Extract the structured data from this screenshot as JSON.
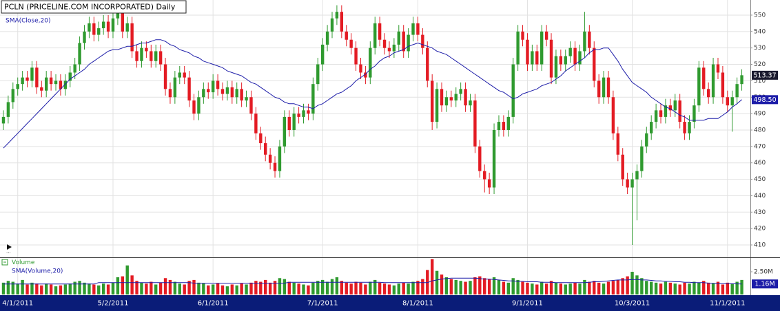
{
  "chart_data": {
    "type": "candlestick",
    "title": "PCLN (PRICELINE.COM INCORPORATED) Daily",
    "up_color": "#2f9a2f",
    "down_color": "#e31b23",
    "grid": true,
    "xlim": [
      -0.72,
      156.8
    ],
    "xticks": [
      {
        "value": 3,
        "label": "4/1/2011"
      },
      {
        "value": 23,
        "label": "5/2/2011"
      },
      {
        "value": 44,
        "label": "6/1/2011"
      },
      {
        "value": 67,
        "label": "7/1/2011"
      },
      {
        "value": 87,
        "label": "8/1/2011"
      },
      {
        "value": 110,
        "label": "9/1/2011"
      },
      {
        "value": 132,
        "label": "10/3/2011"
      },
      {
        "value": 152,
        "label": "11/1/2011"
      }
    ],
    "ylim": [
      403.3,
      559.2
    ],
    "yticks": [
      410,
      420,
      430,
      440,
      450,
      460,
      470,
      480,
      490,
      500,
      510,
      520,
      530,
      540,
      550
    ],
    "open": [
      484,
      488,
      497,
      505,
      508,
      512,
      510,
      518,
      506,
      504,
      512,
      508,
      510,
      505,
      510,
      515,
      520,
      533,
      540,
      545,
      538,
      542,
      546,
      540,
      548,
      552,
      540,
      545,
      528,
      522,
      530,
      528,
      522,
      528,
      520,
      505,
      500,
      512,
      515,
      512,
      498,
      490,
      500,
      505,
      503,
      510,
      505,
      502,
      506,
      500,
      505,
      498,
      500,
      490,
      478,
      472,
      465,
      460,
      455,
      470,
      488,
      480,
      490,
      488,
      492,
      490,
      508,
      520,
      532,
      540,
      548,
      552,
      540,
      535,
      530,
      520,
      515,
      512,
      530,
      545,
      535,
      530,
      528,
      532,
      540,
      528,
      538,
      545,
      538,
      530,
      510,
      485,
      505,
      495,
      500,
      498,
      502,
      505,
      495,
      498,
      470,
      455,
      450,
      445,
      480,
      485,
      480,
      488,
      520,
      540,
      535,
      520,
      528,
      520,
      540,
      535,
      512,
      525,
      520,
      525,
      530,
      520,
      528,
      540,
      530,
      510,
      500,
      512,
      500,
      478,
      465,
      450,
      445,
      450,
      455,
      470,
      478,
      485,
      492,
      488,
      495,
      492,
      498,
      485,
      478,
      485,
      495,
      518,
      505,
      500,
      520,
      515,
      500,
      495,
      500,
      508
    ],
    "high": [
      492,
      501,
      509,
      512,
      516,
      516,
      522,
      522,
      510,
      516,
      516,
      514,
      514,
      514,
      519,
      524,
      537,
      544,
      549,
      549,
      546,
      550,
      550,
      552,
      556,
      556,
      549,
      549,
      532,
      534,
      534,
      532,
      532,
      532,
      524,
      509,
      516,
      519,
      519,
      516,
      502,
      504,
      509,
      509,
      514,
      514,
      509,
      510,
      510,
      509,
      509,
      504,
      504,
      494,
      482,
      476,
      469,
      464,
      474,
      492,
      492,
      494,
      494,
      496,
      496,
      512,
      524,
      536,
      544,
      552,
      556,
      556,
      544,
      539,
      534,
      524,
      519,
      534,
      549,
      549,
      539,
      534,
      536,
      544,
      544,
      542,
      549,
      549,
      542,
      534,
      514,
      509,
      509,
      504,
      504,
      506,
      509,
      509,
      502,
      502,
      474,
      459,
      454,
      484,
      489,
      489,
      492,
      524,
      544,
      544,
      539,
      532,
      532,
      544,
      544,
      539,
      529,
      529,
      529,
      534,
      534,
      532,
      552,
      544,
      534,
      514,
      516,
      516,
      504,
      482,
      469,
      454,
      454,
      459,
      474,
      482,
      489,
      496,
      496,
      499,
      499,
      502,
      502,
      489,
      489,
      499,
      522,
      522,
      509,
      524,
      524,
      519,
      504,
      504,
      512,
      517
    ],
    "low": [
      480,
      484,
      493,
      501,
      504,
      506,
      506,
      502,
      500,
      500,
      504,
      504,
      501,
      501,
      506,
      511,
      516,
      529,
      536,
      534,
      534,
      538,
      536,
      536,
      544,
      536,
      536,
      524,
      518,
      518,
      524,
      518,
      518,
      516,
      501,
      496,
      496,
      508,
      508,
      494,
      486,
      486,
      496,
      499,
      499,
      501,
      498,
      498,
      496,
      496,
      494,
      494,
      486,
      474,
      468,
      461,
      456,
      451,
      451,
      466,
      476,
      476,
      484,
      484,
      486,
      486,
      504,
      516,
      528,
      536,
      544,
      536,
      531,
      526,
      516,
      511,
      508,
      508,
      526,
      531,
      526,
      524,
      524,
      528,
      524,
      524,
      534,
      534,
      526,
      506,
      480,
      481,
      491,
      491,
      494,
      494,
      498,
      491,
      491,
      466,
      451,
      442,
      441,
      441,
      476,
      476,
      476,
      484,
      516,
      531,
      516,
      516,
      516,
      516,
      531,
      508,
      508,
      516,
      516,
      521,
      516,
      516,
      524,
      526,
      506,
      496,
      496,
      496,
      474,
      461,
      446,
      441,
      410,
      425,
      451,
      466,
      474,
      481,
      484,
      484,
      488,
      488,
      481,
      474,
      474,
      481,
      491,
      501,
      496,
      496,
      511,
      496,
      491,
      479,
      496,
      504
    ],
    "close": [
      488,
      497,
      505,
      508,
      512,
      510,
      518,
      506,
      504,
      512,
      508,
      510,
      505,
      510,
      515,
      520,
      533,
      540,
      545,
      538,
      542,
      546,
      540,
      548,
      552,
      540,
      545,
      528,
      522,
      530,
      528,
      522,
      528,
      520,
      505,
      500,
      512,
      515,
      512,
      498,
      490,
      500,
      505,
      503,
      510,
      505,
      502,
      506,
      500,
      505,
      498,
      500,
      490,
      478,
      472,
      465,
      460,
      455,
      470,
      488,
      480,
      490,
      488,
      492,
      490,
      508,
      520,
      532,
      540,
      548,
      552,
      540,
      535,
      530,
      520,
      515,
      512,
      530,
      545,
      535,
      530,
      528,
      532,
      540,
      528,
      538,
      545,
      538,
      530,
      510,
      485,
      505,
      495,
      500,
      498,
      502,
      505,
      495,
      498,
      470,
      455,
      450,
      445,
      480,
      485,
      480,
      488,
      520,
      540,
      535,
      520,
      528,
      520,
      540,
      535,
      512,
      525,
      520,
      525,
      530,
      520,
      528,
      540,
      530,
      510,
      500,
      512,
      500,
      478,
      465,
      450,
      445,
      450,
      455,
      470,
      478,
      485,
      492,
      488,
      495,
      492,
      498,
      485,
      478,
      485,
      495,
      518,
      505,
      500,
      520,
      515,
      500,
      495,
      500,
      508,
      513.37
    ],
    "overlay": {
      "name": "SMA(Close,20)",
      "color": "#1c1ca8",
      "last_label": "498.50",
      "values": [
        469,
        472,
        475,
        478,
        481,
        484,
        487,
        490,
        493,
        496,
        499,
        502,
        505,
        508,
        511,
        513,
        515,
        517,
        520,
        522,
        524,
        526,
        528,
        529,
        529,
        530,
        531,
        531,
        532,
        533,
        533,
        534,
        535,
        535,
        534,
        532,
        531,
        529,
        528,
        527,
        525,
        524,
        522,
        521,
        520,
        519,
        518,
        516,
        515,
        514,
        513,
        511,
        509,
        508,
        506,
        504,
        502,
        500,
        499,
        497,
        496,
        496,
        495,
        494,
        494,
        493,
        495,
        496,
        498,
        500,
        502,
        503,
        505,
        507,
        510,
        512,
        514,
        517,
        519,
        522,
        524,
        525,
        527,
        528,
        529,
        531,
        532,
        533,
        532,
        531,
        530,
        528,
        527,
        526,
        524,
        522,
        520,
        518,
        516,
        514,
        512,
        510,
        508,
        506,
        504,
        503,
        501,
        499,
        500,
        502,
        503,
        504,
        505,
        507,
        508,
        509,
        511,
        513,
        516,
        518,
        520,
        522,
        524,
        527,
        529,
        529,
        530,
        530,
        526,
        522,
        517,
        513,
        509,
        507,
        505,
        503,
        500,
        498,
        496,
        494,
        493,
        491,
        489,
        488,
        486,
        486,
        486,
        486,
        487,
        487,
        487,
        489,
        491,
        494,
        496,
        498.5
      ]
    },
    "volume": {
      "name": "Volume",
      "ylim": [
        0,
        3.94
      ],
      "yticks": [
        {
          "value": 2.5,
          "label": "2.50M"
        }
      ],
      "values": [
        1.3,
        1.5,
        1.4,
        1.2,
        1.6,
        1.1,
        1.3,
        1.2,
        1.0,
        1.2,
        1.1,
        0.9,
        1.0,
        1.1,
        1.2,
        1.4,
        1.5,
        1.3,
        1.2,
        1.1,
        1.0,
        1.2,
        1.1,
        1.3,
        1.9,
        2.0,
        3.2,
        2.1,
        1.5,
        1.3,
        1.2,
        1.4,
        1.1,
        1.3,
        1.8,
        1.6,
        1.4,
        1.2,
        1.1,
        1.5,
        1.6,
        1.3,
        1.2,
        1.0,
        1.1,
        1.2,
        1.0,
        0.9,
        1.1,
        1.0,
        1.2,
        1.1,
        1.3,
        1.5,
        1.4,
        1.6,
        1.3,
        1.5,
        1.8,
        1.7,
        1.4,
        1.3,
        1.2,
        1.1,
        1.0,
        1.3,
        1.5,
        1.6,
        1.4,
        1.7,
        1.9,
        1.5,
        1.3,
        1.2,
        1.4,
        1.3,
        1.1,
        1.4,
        1.6,
        1.3,
        1.2,
        1.1,
        1.0,
        1.2,
        1.3,
        1.2,
        1.4,
        1.5,
        1.7,
        2.7,
        3.9,
        2.6,
        2.2,
        1.9,
        1.7,
        1.6,
        1.5,
        1.4,
        1.5,
        1.9,
        2.0,
        1.8,
        1.7,
        1.9,
        1.6,
        1.4,
        1.3,
        1.8,
        1.6,
        1.4,
        1.3,
        1.2,
        1.1,
        1.4,
        1.2,
        1.5,
        1.3,
        1.2,
        1.1,
        1.2,
        1.3,
        1.2,
        1.6,
        1.4,
        1.5,
        1.3,
        1.2,
        1.4,
        1.5,
        1.6,
        1.8,
        2.0,
        2.5,
        2.1,
        1.8,
        1.5,
        1.4,
        1.3,
        1.2,
        1.4,
        1.3,
        1.2,
        1.1,
        1.3,
        1.2,
        1.4,
        1.3,
        1.5,
        1.3,
        1.2,
        1.4,
        1.1,
        1.3,
        1.2,
        1.4,
        1.6
      ],
      "sma": {
        "name": "SMA(Volume,20)",
        "color": "#1c1ca8",
        "last_label": "1.16M",
        "values": [
          1.15,
          1.15,
          1.15,
          1.15,
          1.15,
          1.15,
          1.15,
          1.15,
          1.15,
          1.15,
          1.15,
          1.15,
          1.15,
          1.15,
          1.15,
          1.15,
          1.15,
          1.15,
          1.15,
          1.15,
          1.3,
          1.3,
          1.3,
          1.3,
          1.3,
          1.3,
          1.3,
          1.3,
          1.3,
          1.3,
          1.3,
          1.3,
          1.3,
          1.3,
          1.3,
          1.3,
          1.3,
          1.3,
          1.3,
          1.3,
          1.25,
          1.25,
          1.25,
          1.25,
          1.25,
          1.25,
          1.25,
          1.25,
          1.25,
          1.25,
          1.25,
          1.25,
          1.25,
          1.25,
          1.25,
          1.25,
          1.25,
          1.25,
          1.25,
          1.25,
          1.35,
          1.35,
          1.35,
          1.35,
          1.35,
          1.35,
          1.35,
          1.35,
          1.35,
          1.35,
          1.35,
          1.35,
          1.35,
          1.35,
          1.35,
          1.35,
          1.35,
          1.35,
          1.35,
          1.35,
          1.3,
          1.3,
          1.3,
          1.3,
          1.3,
          1.3,
          1.3,
          1.3,
          1.3,
          1.3,
          1.5,
          1.6,
          1.7,
          1.75,
          1.8,
          1.8,
          1.8,
          1.8,
          1.8,
          1.8,
          1.75,
          1.7,
          1.7,
          1.65,
          1.6,
          1.55,
          1.5,
          1.5,
          1.45,
          1.45,
          1.4,
          1.4,
          1.4,
          1.35,
          1.35,
          1.35,
          1.3,
          1.3,
          1.3,
          1.3,
          1.3,
          1.3,
          1.3,
          1.35,
          1.4,
          1.4,
          1.45,
          1.5,
          1.55,
          1.6,
          1.6,
          1.6,
          1.65,
          1.65,
          1.6,
          1.6,
          1.55,
          1.5,
          1.5,
          1.45,
          1.45,
          1.4,
          1.4,
          1.35,
          1.35,
          1.3,
          1.3,
          1.3,
          1.25,
          1.25,
          1.2,
          1.2,
          1.2,
          1.18,
          1.17,
          1.16
        ]
      }
    }
  }
}
